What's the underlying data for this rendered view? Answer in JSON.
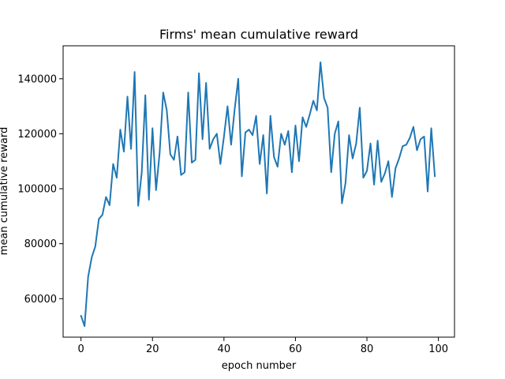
{
  "chart_data": {
    "type": "line",
    "title": "Firms' mean cumulative reward",
    "xlabel": "epoch number",
    "ylabel": "mean cumulative reward",
    "xlim": [
      -5,
      104.5
    ],
    "ylim": [
      46000,
      152000
    ],
    "xticks": [
      0,
      20,
      40,
      60,
      80,
      100
    ],
    "yticks": [
      60000,
      80000,
      100000,
      120000,
      140000
    ],
    "xtick_labels": [
      "0",
      "20",
      "40",
      "60",
      "80",
      "100"
    ],
    "ytick_labels": [
      "60000",
      "80000",
      "100000",
      "120000",
      "140000"
    ],
    "grid": false,
    "line_color": "#1f77b4",
    "series": [
      {
        "x": [
          0,
          1,
          2,
          3,
          4,
          5,
          6,
          7,
          8,
          9,
          10,
          11,
          12,
          13,
          14,
          15,
          16,
          17,
          18,
          19,
          20,
          21,
          22,
          23,
          24,
          25,
          26,
          27,
          28,
          29,
          30,
          31,
          32,
          33,
          34,
          35,
          36,
          37,
          38,
          39,
          40,
          41,
          42,
          43,
          44,
          45,
          46,
          47,
          48,
          49,
          50,
          51,
          52,
          53,
          54,
          55,
          56,
          57,
          58,
          59,
          60,
          61,
          62,
          63,
          64,
          65,
          66,
          67,
          68,
          69,
          70,
          71,
          72,
          73,
          74,
          75,
          76,
          77,
          78,
          79,
          80,
          81,
          82,
          83,
          84,
          85,
          86,
          87,
          88,
          89,
          90,
          91,
          92,
          93,
          94,
          95,
          96,
          97,
          98,
          99
        ],
        "values": [
          53800,
          50000,
          68000,
          75000,
          79000,
          89000,
          90500,
          97000,
          94000,
          109000,
          104000,
          121500,
          113500,
          133500,
          114500,
          142500,
          93800,
          106000,
          134000,
          96000,
          122000,
          99500,
          113000,
          135000,
          128500,
          112500,
          110500,
          119000,
          105000,
          106000,
          135000,
          109500,
          110500,
          142000,
          118000,
          138500,
          114500,
          118000,
          120000,
          109000,
          119000,
          130000,
          116000,
          129000,
          140000,
          104500,
          120500,
          121500,
          119500,
          126500,
          109000,
          119500,
          98300,
          126500,
          111500,
          108000,
          120000,
          116000,
          121000,
          106000,
          123000,
          110000,
          126000,
          122500,
          127000,
          132000,
          128500,
          146000,
          133000,
          129500,
          106000,
          120000,
          124500,
          94700,
          102000,
          119500,
          111000,
          116500,
          129500,
          104000,
          106500,
          116500,
          101500,
          117500,
          102500,
          105500,
          110000,
          97000,
          107500,
          111000,
          115500,
          116000,
          118500,
          122500,
          114000,
          118000,
          119000,
          99000,
          122000,
          104500
        ]
      }
    ]
  }
}
